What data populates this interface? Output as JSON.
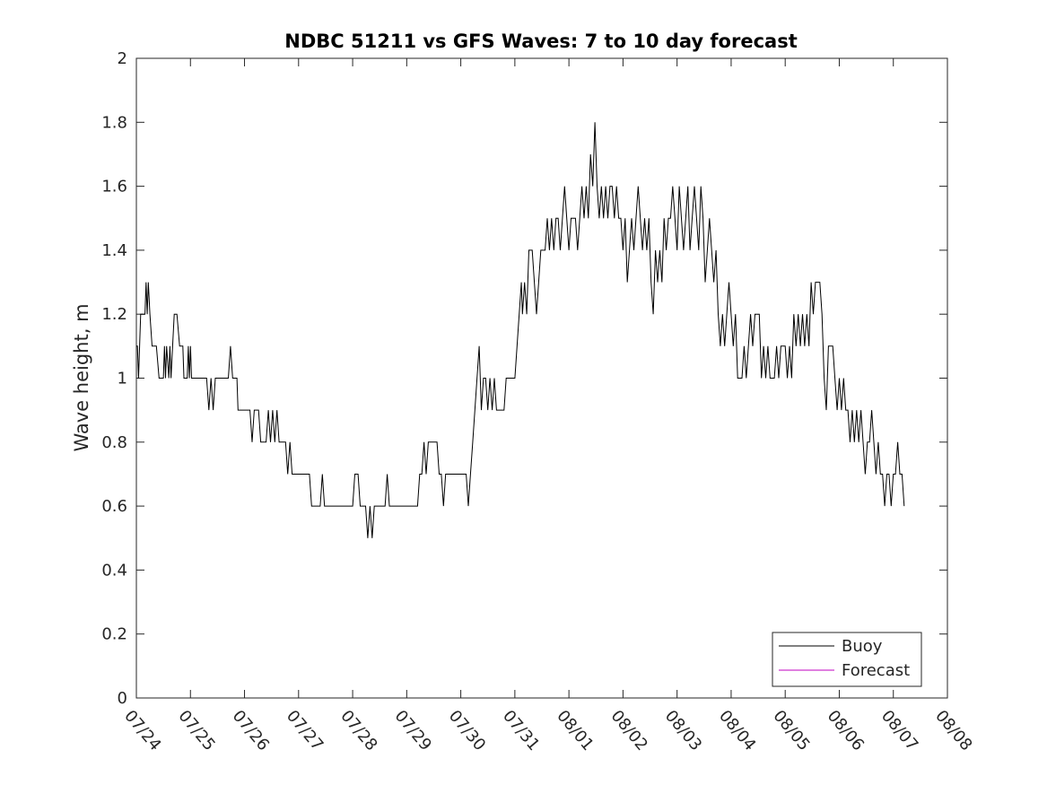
{
  "chart_data": {
    "type": "line",
    "title": "NDBC 51211 vs GFS Waves: 7 to 10 day forecast",
    "xlabel": "",
    "ylabel": "Wave height, m",
    "xlim": [
      0,
      15
    ],
    "ylim": [
      0,
      2
    ],
    "x_unit": "days from 07/24",
    "x_ticks": [
      "07/24",
      "07/25",
      "07/26",
      "07/27",
      "07/28",
      "07/29",
      "07/30",
      "07/31",
      "08/01",
      "08/02",
      "08/03",
      "08/04",
      "08/05",
      "08/06",
      "08/07",
      "08/08"
    ],
    "y_ticks": [
      "0",
      "0.2",
      "0.4",
      "0.6",
      "0.8",
      "1",
      "1.2",
      "1.4",
      "1.6",
      "1.8",
      "2"
    ],
    "grid": false,
    "legend": {
      "placement": "bottom-right",
      "entries": [
        "Buoy",
        "Forecast"
      ]
    },
    "series": [
      {
        "name": "Buoy",
        "color": "#000000",
        "points": [
          [
            0.0,
            1.1
          ],
          [
            0.02,
            1.1
          ],
          [
            0.04,
            1.0
          ],
          [
            0.06,
            1.1
          ],
          [
            0.08,
            1.2
          ],
          [
            0.12,
            1.2
          ],
          [
            0.16,
            1.2
          ],
          [
            0.18,
            1.3
          ],
          [
            0.2,
            1.2
          ],
          [
            0.22,
            1.3
          ],
          [
            0.25,
            1.2
          ],
          [
            0.29,
            1.1
          ],
          [
            0.37,
            1.1
          ],
          [
            0.42,
            1.0
          ],
          [
            0.5,
            1.0
          ],
          [
            0.52,
            1.1
          ],
          [
            0.54,
            1.0
          ],
          [
            0.56,
            1.1
          ],
          [
            0.6,
            1.0
          ],
          [
            0.62,
            1.1
          ],
          [
            0.64,
            1.0
          ],
          [
            0.7,
            1.2
          ],
          [
            0.75,
            1.2
          ],
          [
            0.8,
            1.1
          ],
          [
            0.86,
            1.1
          ],
          [
            0.88,
            1.0
          ],
          [
            0.94,
            1.0
          ],
          [
            0.96,
            1.1
          ],
          [
            0.98,
            1.0
          ],
          [
            1.0,
            1.1
          ],
          [
            1.02,
            1.0
          ],
          [
            1.3,
            1.0
          ],
          [
            1.34,
            0.9
          ],
          [
            1.38,
            1.0
          ],
          [
            1.42,
            0.9
          ],
          [
            1.46,
            1.0
          ],
          [
            1.7,
            1.0
          ],
          [
            1.74,
            1.1
          ],
          [
            1.78,
            1.0
          ],
          [
            1.86,
            1.0
          ],
          [
            1.88,
            0.9
          ],
          [
            2.0,
            0.9
          ],
          [
            2.1,
            0.9
          ],
          [
            2.14,
            0.8
          ],
          [
            2.18,
            0.9
          ],
          [
            2.26,
            0.9
          ],
          [
            2.3,
            0.8
          ],
          [
            2.4,
            0.8
          ],
          [
            2.44,
            0.9
          ],
          [
            2.48,
            0.8
          ],
          [
            2.52,
            0.9
          ],
          [
            2.56,
            0.8
          ],
          [
            2.6,
            0.9
          ],
          [
            2.64,
            0.8
          ],
          [
            2.76,
            0.8
          ],
          [
            2.8,
            0.7
          ],
          [
            2.84,
            0.8
          ],
          [
            2.88,
            0.7
          ],
          [
            3.2,
            0.7
          ],
          [
            3.24,
            0.6
          ],
          [
            3.4,
            0.6
          ],
          [
            3.44,
            0.7
          ],
          [
            3.48,
            0.6
          ],
          [
            4.0,
            0.6
          ],
          [
            4.04,
            0.7
          ],
          [
            4.1,
            0.7
          ],
          [
            4.14,
            0.6
          ],
          [
            4.24,
            0.6
          ],
          [
            4.28,
            0.5
          ],
          [
            4.32,
            0.6
          ],
          [
            4.36,
            0.5
          ],
          [
            4.4,
            0.6
          ],
          [
            4.6,
            0.6
          ],
          [
            4.64,
            0.7
          ],
          [
            4.68,
            0.6
          ],
          [
            5.2,
            0.6
          ],
          [
            5.24,
            0.7
          ],
          [
            5.28,
            0.7
          ],
          [
            5.32,
            0.8
          ],
          [
            5.36,
            0.7
          ],
          [
            5.4,
            0.8
          ],
          [
            5.56,
            0.8
          ],
          [
            5.6,
            0.7
          ],
          [
            5.64,
            0.7
          ],
          [
            5.68,
            0.6
          ],
          [
            5.72,
            0.7
          ],
          [
            6.1,
            0.7
          ],
          [
            6.14,
            0.6
          ],
          [
            6.18,
            0.7
          ],
          [
            6.22,
            0.8
          ],
          [
            6.26,
            0.9
          ],
          [
            6.3,
            1.0
          ],
          [
            6.34,
            1.1
          ],
          [
            6.38,
            0.9
          ],
          [
            6.42,
            1.0
          ],
          [
            6.46,
            1.0
          ],
          [
            6.5,
            0.9
          ],
          [
            6.54,
            1.0
          ],
          [
            6.58,
            0.9
          ],
          [
            6.62,
            1.0
          ],
          [
            6.66,
            0.9
          ],
          [
            6.8,
            0.9
          ],
          [
            6.84,
            1.0
          ],
          [
            7.0,
            1.0
          ],
          [
            7.04,
            1.1
          ],
          [
            7.08,
            1.2
          ],
          [
            7.12,
            1.3
          ],
          [
            7.14,
            1.2
          ],
          [
            7.18,
            1.3
          ],
          [
            7.22,
            1.2
          ],
          [
            7.26,
            1.4
          ],
          [
            7.32,
            1.4
          ],
          [
            7.36,
            1.3
          ],
          [
            7.4,
            1.2
          ],
          [
            7.44,
            1.3
          ],
          [
            7.48,
            1.4
          ],
          [
            7.56,
            1.4
          ],
          [
            7.6,
            1.5
          ],
          [
            7.64,
            1.4
          ],
          [
            7.68,
            1.5
          ],
          [
            7.72,
            1.4
          ],
          [
            7.76,
            1.5
          ],
          [
            7.8,
            1.5
          ],
          [
            7.84,
            1.4
          ],
          [
            7.88,
            1.5
          ],
          [
            7.92,
            1.6
          ],
          [
            7.96,
            1.5
          ],
          [
            8.0,
            1.4
          ],
          [
            8.04,
            1.5
          ],
          [
            8.12,
            1.5
          ],
          [
            8.16,
            1.4
          ],
          [
            8.2,
            1.5
          ],
          [
            8.24,
            1.6
          ],
          [
            8.28,
            1.5
          ],
          [
            8.32,
            1.6
          ],
          [
            8.36,
            1.5
          ],
          [
            8.4,
            1.7
          ],
          [
            8.44,
            1.6
          ],
          [
            8.48,
            1.8
          ],
          [
            8.52,
            1.6
          ],
          [
            8.56,
            1.5
          ],
          [
            8.6,
            1.6
          ],
          [
            8.64,
            1.5
          ],
          [
            8.68,
            1.6
          ],
          [
            8.72,
            1.5
          ],
          [
            8.76,
            1.6
          ],
          [
            8.8,
            1.6
          ],
          [
            8.84,
            1.5
          ],
          [
            8.88,
            1.6
          ],
          [
            8.92,
            1.5
          ],
          [
            8.96,
            1.5
          ],
          [
            9.0,
            1.4
          ],
          [
            9.04,
            1.5
          ],
          [
            9.08,
            1.3
          ],
          [
            9.12,
            1.4
          ],
          [
            9.16,
            1.5
          ],
          [
            9.2,
            1.4
          ],
          [
            9.24,
            1.5
          ],
          [
            9.28,
            1.6
          ],
          [
            9.32,
            1.5
          ],
          [
            9.36,
            1.4
          ],
          [
            9.4,
            1.5
          ],
          [
            9.44,
            1.4
          ],
          [
            9.48,
            1.5
          ],
          [
            9.52,
            1.3
          ],
          [
            9.56,
            1.2
          ],
          [
            9.6,
            1.4
          ],
          [
            9.64,
            1.3
          ],
          [
            9.68,
            1.4
          ],
          [
            9.72,
            1.3
          ],
          [
            9.76,
            1.5
          ],
          [
            9.8,
            1.4
          ],
          [
            9.84,
            1.5
          ],
          [
            9.88,
            1.5
          ],
          [
            9.92,
            1.6
          ],
          [
            9.96,
            1.5
          ],
          [
            10.0,
            1.4
          ],
          [
            10.04,
            1.6
          ],
          [
            10.08,
            1.5
          ],
          [
            10.12,
            1.4
          ],
          [
            10.16,
            1.5
          ],
          [
            10.2,
            1.6
          ],
          [
            10.24,
            1.4
          ],
          [
            10.28,
            1.5
          ],
          [
            10.32,
            1.6
          ],
          [
            10.36,
            1.5
          ],
          [
            10.4,
            1.4
          ],
          [
            10.44,
            1.6
          ],
          [
            10.48,
            1.5
          ],
          [
            10.52,
            1.3
          ],
          [
            10.56,
            1.4
          ],
          [
            10.6,
            1.5
          ],
          [
            10.64,
            1.4
          ],
          [
            10.68,
            1.3
          ],
          [
            10.72,
            1.4
          ],
          [
            10.76,
            1.2
          ],
          [
            10.8,
            1.1
          ],
          [
            10.84,
            1.2
          ],
          [
            10.88,
            1.1
          ],
          [
            10.92,
            1.2
          ],
          [
            10.96,
            1.3
          ],
          [
            11.0,
            1.2
          ],
          [
            11.04,
            1.1
          ],
          [
            11.08,
            1.2
          ],
          [
            11.12,
            1.0
          ],
          [
            11.2,
            1.0
          ],
          [
            11.24,
            1.1
          ],
          [
            11.28,
            1.0
          ],
          [
            11.32,
            1.1
          ],
          [
            11.36,
            1.2
          ],
          [
            11.4,
            1.1
          ],
          [
            11.44,
            1.2
          ],
          [
            11.52,
            1.2
          ],
          [
            11.56,
            1.0
          ],
          [
            11.6,
            1.1
          ],
          [
            11.64,
            1.0
          ],
          [
            11.68,
            1.1
          ],
          [
            11.72,
            1.0
          ],
          [
            11.8,
            1.0
          ],
          [
            11.84,
            1.1
          ],
          [
            11.88,
            1.0
          ],
          [
            11.92,
            1.1
          ],
          [
            12.0,
            1.1
          ],
          [
            12.04,
            1.0
          ],
          [
            12.08,
            1.1
          ],
          [
            12.12,
            1.0
          ],
          [
            12.16,
            1.2
          ],
          [
            12.2,
            1.1
          ],
          [
            12.24,
            1.2
          ],
          [
            12.28,
            1.1
          ],
          [
            12.32,
            1.2
          ],
          [
            12.36,
            1.1
          ],
          [
            12.4,
            1.2
          ],
          [
            12.44,
            1.1
          ],
          [
            12.48,
            1.3
          ],
          [
            12.52,
            1.2
          ],
          [
            12.56,
            1.3
          ],
          [
            12.64,
            1.3
          ],
          [
            12.68,
            1.2
          ],
          [
            12.72,
            1.0
          ],
          [
            12.76,
            0.9
          ],
          [
            12.8,
            1.1
          ],
          [
            12.88,
            1.1
          ],
          [
            12.92,
            1.0
          ],
          [
            12.96,
            0.9
          ],
          [
            13.0,
            1.0
          ],
          [
            13.04,
            0.9
          ],
          [
            13.08,
            1.0
          ],
          [
            13.12,
            0.9
          ],
          [
            13.16,
            0.9
          ],
          [
            13.2,
            0.8
          ],
          [
            13.24,
            0.9
          ],
          [
            13.28,
            0.8
          ],
          [
            13.32,
            0.9
          ],
          [
            13.36,
            0.8
          ],
          [
            13.4,
            0.9
          ],
          [
            13.44,
            0.8
          ],
          [
            13.48,
            0.7
          ],
          [
            13.52,
            0.8
          ],
          [
            13.56,
            0.8
          ],
          [
            13.6,
            0.9
          ],
          [
            13.64,
            0.8
          ],
          [
            13.68,
            0.7
          ],
          [
            13.72,
            0.8
          ],
          [
            13.76,
            0.7
          ],
          [
            13.8,
            0.7
          ],
          [
            13.84,
            0.6
          ],
          [
            13.88,
            0.7
          ],
          [
            13.92,
            0.7
          ],
          [
            13.96,
            0.6
          ],
          [
            14.0,
            0.7
          ],
          [
            14.04,
            0.7
          ],
          [
            14.08,
            0.8
          ],
          [
            14.12,
            0.7
          ],
          [
            14.16,
            0.7
          ],
          [
            14.2,
            0.6
          ]
        ]
      },
      {
        "name": "Forecast",
        "color": "#c000c0",
        "points": []
      }
    ]
  }
}
